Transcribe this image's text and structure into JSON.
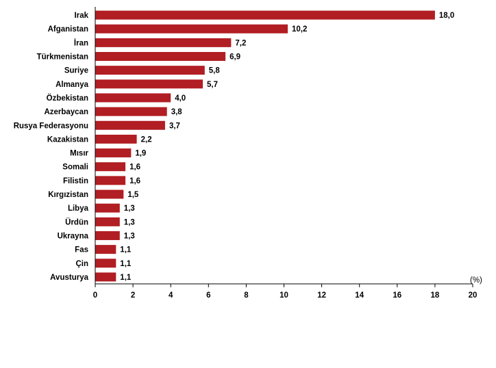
{
  "chart_data": {
    "type": "bar",
    "orientation": "horizontal",
    "categories": [
      "Irak",
      "Afganistan",
      "İran",
      "Türkmenistan",
      "Suriye",
      "Almanya",
      "Özbekistan",
      "Azerbaycan",
      "Rusya Federasyonu",
      "Kazakistan",
      "Mısır",
      "Somali",
      "Filistin",
      "Kırgızistan",
      "Libya",
      "Ürdün",
      "Ukrayna",
      "Fas",
      "Çin",
      "Avusturya"
    ],
    "values": [
      18.0,
      10.2,
      7.2,
      6.9,
      5.8,
      5.7,
      4.0,
      3.8,
      3.7,
      2.2,
      1.9,
      1.6,
      1.6,
      1.5,
      1.3,
      1.3,
      1.3,
      1.1,
      1.1,
      1.1
    ],
    "value_labels": [
      "18,0",
      "10,2",
      "7,2",
      "6,9",
      "5,8",
      "5,7",
      "4,0",
      "3,8",
      "3,7",
      "2,2",
      "1,9",
      "1,6",
      "1,6",
      "1,5",
      "1,3",
      "1,3",
      "1,3",
      "1,1",
      "1,1",
      "1,1"
    ],
    "xticks": [
      "0",
      "2",
      "4",
      "6",
      "8",
      "10",
      "12",
      "14",
      "16",
      "18",
      "20"
    ],
    "xlim": [
      0,
      20
    ],
    "unit_label": "(%)",
    "grid": false,
    "bar_color": "#B11E23"
  }
}
